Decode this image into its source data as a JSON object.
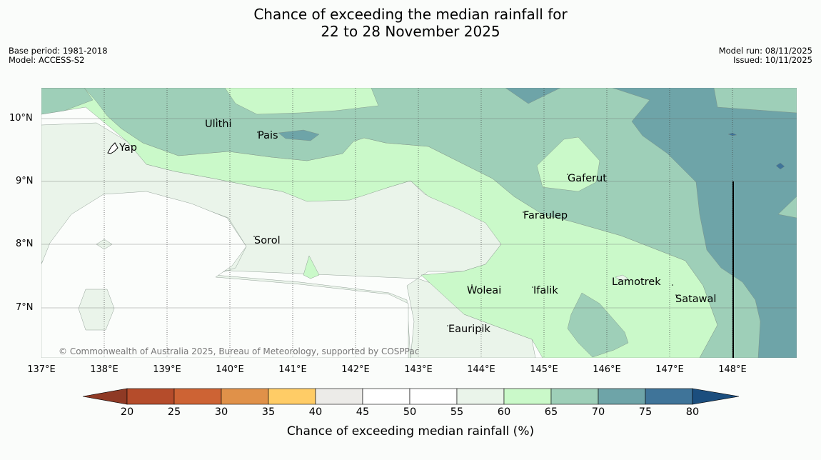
{
  "title": {
    "line1": "Chance of exceeding the median rainfall for",
    "line2": "22 to 28 November 2025"
  },
  "meta": {
    "base_period": "Base period: 1981-2018",
    "model": "Model: ACCESS-S2",
    "model_run": "Model run: 08/11/2025",
    "issued": "Issued: 10/11/2025"
  },
  "map": {
    "lon_ticks": [
      "137°E",
      "138°E",
      "139°E",
      "140°E",
      "141°E",
      "142°E",
      "143°E",
      "144°E",
      "145°E",
      "146°E",
      "147°E",
      "148°E"
    ],
    "lat_ticks": [
      "10°N",
      "9°N",
      "8°N",
      "7°N"
    ],
    "places": [
      {
        "name": "Ulithi"
      },
      {
        "name": "Pais"
      },
      {
        "name": "Yap"
      },
      {
        "name": "Gaferut"
      },
      {
        "name": "Faraulep"
      },
      {
        "name": "Sorol"
      },
      {
        "name": "Woleai"
      },
      {
        "name": "Ifalik"
      },
      {
        "name": "Lamotrek"
      },
      {
        "name": "Satawal"
      },
      {
        "name": "Eauripik"
      }
    ],
    "copyright": "© Commonwealth of Australia 2025, Bureau of Meteorology, supported by COSPPac",
    "category_colors": {
      "45-55": "#fbfdfb",
      "55-60": "#eaf4ea",
      "60-65": "#caf9c9",
      "65-70": "#9ecfb8",
      "70-75": "#6ea4a8",
      "75-80": "#3f7499"
    }
  },
  "colorbar": {
    "labels": [
      "20",
      "25",
      "30",
      "35",
      "40",
      "45",
      "50",
      "55",
      "60",
      "65",
      "70",
      "75",
      "80"
    ],
    "colors": [
      "#8f3a25",
      "#b54c2b",
      "#cd6334",
      "#e09149",
      "#ffcc66",
      "#ecebe8",
      "#ffffff",
      "#ffffff",
      "#eaf4ea",
      "#caf9c9",
      "#9ecfb8",
      "#6ea4a8",
      "#3f7499",
      "#1b4e7e"
    ],
    "title": "Chance of exceeding median rainfall (%)"
  }
}
